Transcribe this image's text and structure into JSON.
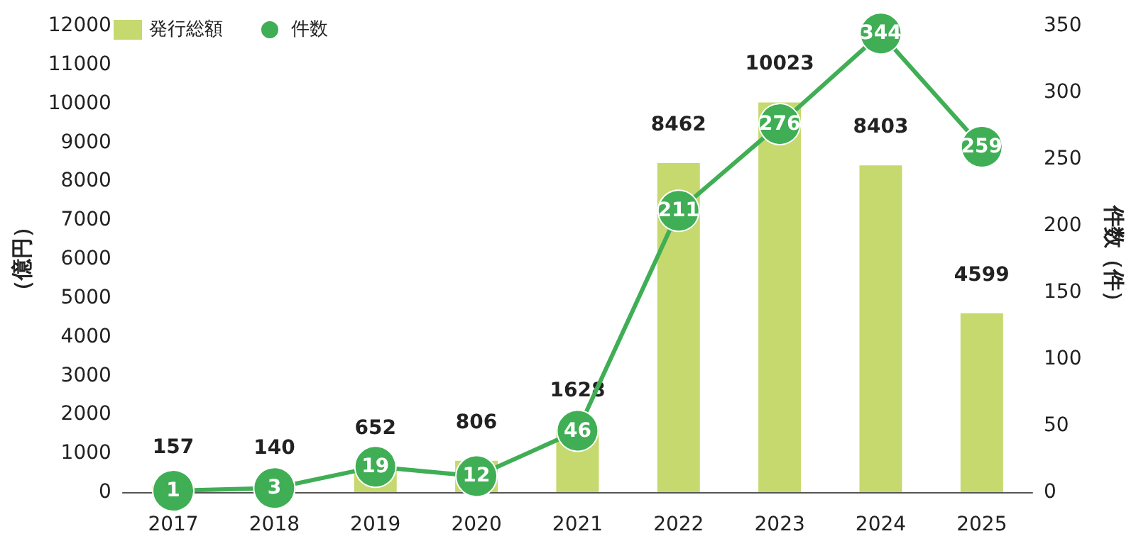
{
  "chart_data": {
    "type": "bar",
    "categories": [
      "2017",
      "2018",
      "2019",
      "2020",
      "2021",
      "2022",
      "2023",
      "2024",
      "2025"
    ],
    "series": [
      {
        "name": "発行総額",
        "color": "#c5d96e",
        "values": [
          157,
          140,
          652,
          806,
          1628,
          8462,
          10023,
          8403,
          4599
        ]
      },
      {
        "name": "件数",
        "type": "line",
        "axis": "y2",
        "color": "#3fae55",
        "values": [
          1,
          3,
          19,
          12,
          46,
          211,
          276,
          344,
          259
        ]
      }
    ],
    "ylabel": "（億円）",
    "y2label": "件数（件）",
    "ylim": [
      0,
      12000
    ],
    "yticks": [
      0,
      1000,
      2000,
      3000,
      4000,
      5000,
      6000,
      7000,
      8000,
      9000,
      10000,
      11000,
      12000
    ],
    "y2lim": [
      0,
      350
    ],
    "y2ticks": [
      0,
      50,
      100,
      150,
      200,
      250,
      300,
      350
    ],
    "data_labels": true,
    "legend": "top left",
    "grid": false,
    "marker": "circle",
    "line_style": "solid"
  }
}
